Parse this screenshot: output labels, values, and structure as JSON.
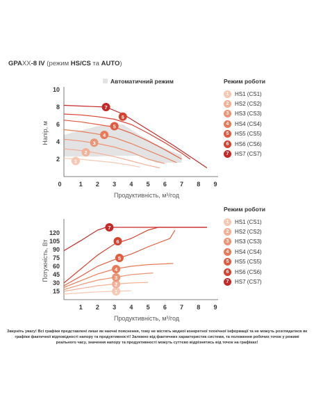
{
  "title": {
    "model_prefix": "GPA",
    "model_mid": "XX",
    "model_suffix": "-8 IV",
    "paren_open": " (режим ",
    "mode1": "HS/CS",
    "conj": " та ",
    "mode2": "AUTO",
    "paren_close": ")"
  },
  "colors": [
    "#f7c7b1",
    "#f3b096",
    "#ee9474",
    "#e97a57",
    "#e35b3e",
    "#d9412f",
    "#c62828"
  ],
  "legend_top": {
    "heading": "Режим роботи",
    "items": [
      "HS1 (CS1)",
      "HS2 (CS2)",
      "HS3 (CS3)",
      "HS4 (CS4)",
      "HS5 (CS5)",
      "HS6 (CS6)",
      "HS7 (CS7)"
    ]
  },
  "legend_bottom": {
    "heading": "Режим роботи",
    "items": [
      "HS1 (CS1)",
      "HS2 (CS2)",
      "HS3 (CS3)",
      "HS4 (CS4)",
      "HS5 (CS5)",
      "HS6 (CS6)",
      "HS7 (CS7)"
    ]
  },
  "note": "Зверніть увагу! Всі графіки представлені лише як наочні пояснення, тому не містять жодної конкретної технічної інформації та не можуть розглядатися як графіки фактичної відповідності напору та продуктивності! Залежно від фактичних характеристик системи, та положення робочих точок у режимі реального часу, значення напору та продуктивності можуть суттєво відрізнятись від точок на графіках!",
  "chart_data": [
    {
      "type": "line",
      "legend_title": "Автоматичний режим",
      "xlabel": "Продуктивність, м³/год",
      "ylabel": "Напір, м",
      "xlim": [
        0,
        9
      ],
      "ylim": [
        0,
        10
      ],
      "xticks": [
        0,
        1,
        2,
        3,
        4,
        5,
        6,
        7,
        8,
        9
      ],
      "yticks": [
        2,
        4,
        6,
        8,
        10
      ],
      "auto_region": [
        [
          0,
          2.3
        ],
        [
          0,
          4.8
        ],
        [
          1,
          5.3
        ],
        [
          2,
          5.8
        ],
        [
          3,
          6
        ],
        [
          3.5,
          6
        ],
        [
          4.5,
          4.8
        ],
        [
          6,
          3.2
        ],
        [
          7,
          2.5
        ],
        [
          7,
          1.6
        ],
        [
          5.5,
          1.6
        ],
        [
          4.5,
          2.4
        ],
        [
          3,
          2.4
        ],
        [
          2,
          2.3
        ]
      ],
      "series": [
        {
          "name": "HS1 (CS1)",
          "marker": [
            0.7,
            1.8
          ],
          "points": [
            [
              0,
              2.1
            ],
            [
              1,
              2
            ],
            [
              2,
              1.8
            ],
            [
              3,
              1.6
            ],
            [
              4,
              1.3
            ],
            [
              4.5,
              1.1
            ]
          ]
        },
        {
          "name": "HS2 (CS2)",
          "marker": [
            1.3,
            2.8
          ],
          "points": [
            [
              0,
              3.2
            ],
            [
              1,
              3
            ],
            [
              2,
              2.7
            ],
            [
              3,
              2.3
            ],
            [
              4,
              1.8
            ],
            [
              5,
              1.3
            ],
            [
              5.7,
              1
            ]
          ]
        },
        {
          "name": "HS3 (CS3)",
          "marker": [
            1.8,
            3.9
          ],
          "points": [
            [
              0,
              4.3
            ],
            [
              1,
              4.1
            ],
            [
              2,
              3.8
            ],
            [
              3,
              3.4
            ],
            [
              4,
              2.8
            ],
            [
              5,
              2
            ],
            [
              6,
              1.5
            ]
          ]
        },
        {
          "name": "HS4 (CS4)",
          "marker": [
            2.4,
            4.8
          ],
          "points": [
            [
              0,
              5.4
            ],
            [
              1,
              5.2
            ],
            [
              2,
              4.9
            ],
            [
              3,
              4.5
            ],
            [
              4,
              3.8
            ],
            [
              5,
              3
            ],
            [
              6,
              2.2
            ],
            [
              6.7,
              1.6
            ]
          ]
        },
        {
          "name": "HS5 (CS5)",
          "marker": [
            3.0,
            5.8
          ],
          "points": [
            [
              0,
              6.5
            ],
            [
              1,
              6.3
            ],
            [
              2,
              6
            ],
            [
              3,
              5.7
            ],
            [
              4,
              5
            ],
            [
              5,
              4.1
            ],
            [
              6,
              3.1
            ],
            [
              7,
              2
            ]
          ]
        },
        {
          "name": "HS6 (CS6)",
          "marker": [
            3.5,
            6.9
          ],
          "points": [
            [
              0,
              7.2
            ],
            [
              1,
              7.1
            ],
            [
              2,
              6.9
            ],
            [
              3,
              6.6
            ],
            [
              4,
              6
            ],
            [
              5,
              5
            ],
            [
              6,
              3.9
            ],
            [
              7,
              2.7
            ],
            [
              7.5,
              2
            ]
          ]
        },
        {
          "name": "HS7 (CS7)",
          "marker": [
            2.5,
            8.0
          ],
          "points": [
            [
              0,
              8.2
            ],
            [
              2.5,
              8
            ],
            [
              3.5,
              7.2
            ],
            [
              4.5,
              6
            ],
            [
              5.5,
              4.8
            ],
            [
              6.5,
              3.6
            ],
            [
              7.5,
              2.3
            ],
            [
              8.5,
              1
            ]
          ]
        }
      ]
    },
    {
      "type": "line",
      "xlabel": "Продуктивність, м³/год",
      "ylabel": "Потужність, Вт",
      "xlim": [
        0,
        9
      ],
      "ylim": [
        0,
        140
      ],
      "xticks": [
        0,
        1,
        2,
        3,
        4,
        5,
        6,
        7,
        8,
        9
      ],
      "yticks": [
        15,
        30,
        45,
        60,
        75,
        90,
        105,
        120
      ],
      "ytick_labels": [
        15,
        30,
        45,
        60,
        75,
        90,
        105,
        120
      ],
      "series": [
        {
          "name": "HS1 (CS1)",
          "marker": [
            3.1,
            15
          ],
          "points": [
            [
              0,
              10
            ],
            [
              1,
              12
            ],
            [
              2,
              14
            ],
            [
              3,
              15
            ],
            [
              4,
              16
            ]
          ]
        },
        {
          "name": "HS2 (CS2)",
          "marker": [
            3.1,
            28
          ],
          "points": [
            [
              0,
              15
            ],
            [
              1,
              20
            ],
            [
              2,
              25
            ],
            [
              3,
              28
            ],
            [
              4,
              30
            ],
            [
              5,
              31
            ]
          ]
        },
        {
          "name": "HS3 (CS3)",
          "marker": [
            3.1,
            40
          ],
          "points": [
            [
              0,
              18
            ],
            [
              1,
              27
            ],
            [
              2,
              35
            ],
            [
              3,
              40
            ],
            [
              4,
              45
            ],
            [
              5.3,
              48
            ]
          ]
        },
        {
          "name": "HS4 (CS4)",
          "marker": [
            3.1,
            55
          ],
          "points": [
            [
              0,
              22
            ],
            [
              1,
              34
            ],
            [
              2,
              46
            ],
            [
              3,
              55
            ],
            [
              4,
              60
            ],
            [
              5,
              63
            ],
            [
              6.5,
              65
            ]
          ]
        },
        {
          "name": "HS5 (CS5)",
          "marker": [
            3.3,
            75
          ],
          "points": [
            [
              0,
              25
            ],
            [
              1,
              42
            ],
            [
              2,
              60
            ],
            [
              3,
              72
            ],
            [
              4,
              82
            ],
            [
              5,
              95
            ],
            [
              6.3,
              110
            ],
            [
              6.6,
              125
            ]
          ]
        },
        {
          "name": "HS6 (CS6)",
          "marker": [
            3.2,
            105
          ],
          "points": [
            [
              0,
              30
            ],
            [
              1,
              55
            ],
            [
              2,
              80
            ],
            [
              3,
              100
            ],
            [
              4,
              110
            ],
            [
              5,
              125
            ],
            [
              5.6,
              130
            ],
            [
              8.5,
              130
            ]
          ]
        },
        {
          "name": "HS7 (CS7)",
          "marker": [
            2.7,
            130
          ],
          "points": [
            [
              0,
              88
            ],
            [
              1,
              106
            ],
            [
              2,
              125
            ],
            [
              2.5,
              130
            ],
            [
              8.5,
              130
            ]
          ]
        }
      ]
    }
  ]
}
